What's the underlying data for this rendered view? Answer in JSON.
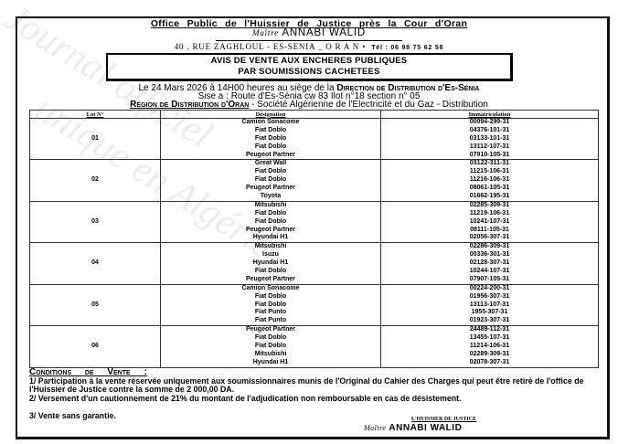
{
  "header": {
    "office": "Office Public de l'Huissier de Justice près la Cour d'Oran",
    "maitre_prefix": "Maître",
    "name": "ANNABI WALID",
    "address": "40 . RUE ZAGHLOUL - ES-SENIA _ O R A N •",
    "tel": "Tél : 06 98 75 62 58"
  },
  "title": {
    "line1": "AVIS DE VENTE AUX ENCHERES PUBLIQUES",
    "line2": "PAR SOUMISSIONS CACHETEES"
  },
  "intro": {
    "date_text": "Le 24 Mars 2026 à 14H00 heures au siège de la",
    "place": "Direction de Distribution d'Es-Sénia",
    "address": "Sise a : Route d'Es-Sénia cw 83 Ilot n°18 section n° 05",
    "region": "Région de Distribution d'Oran",
    "company": " - Société Algérienne de l'Electricité et du Gaz - Distribution"
  },
  "table": {
    "headers": [
      "Lot N°",
      "Désignation",
      "Immatriculation"
    ],
    "lots": [
      {
        "lot": "01",
        "items": [
          [
            "Camion Sonacome",
            "00094-299-31"
          ],
          [
            "Fiat Doblo",
            "04376-101-31"
          ],
          [
            "Fiat Doblo",
            "03133-101-31"
          ],
          [
            "Fiat Doblo",
            "13112-107-31"
          ],
          [
            "Peugeot Partner",
            "07910-105-31"
          ]
        ]
      },
      {
        "lot": "02",
        "items": [
          [
            "Great Wall",
            "03122-311-31"
          ],
          [
            "Fiat Doblo",
            "11215-106-31"
          ],
          [
            "Fiat Doblo",
            "11216-106-31"
          ],
          [
            "Peugeot Partner",
            "08061-105-31"
          ],
          [
            "Toyota",
            "01662-195-31"
          ]
        ]
      },
      {
        "lot": "03",
        "items": [
          [
            "Mitsubishi",
            "02285-309-31"
          ],
          [
            "Fiat Doblo",
            "11219-106-31"
          ],
          [
            "Fiat Doblo",
            "10241-107-31"
          ],
          [
            "Peugeot Partner",
            "08111-105-31"
          ],
          [
            "Hyundai H1",
            "02056-307-31"
          ]
        ]
      },
      {
        "lot": "04",
        "items": [
          [
            "Mitsubishi",
            "02286-309-31"
          ],
          [
            "Isuzu",
            "00336-301-31"
          ],
          [
            "Hyundai H1",
            "02128-307-31"
          ],
          [
            "Fiat Doblo",
            "10244-107-31"
          ],
          [
            "Peugeot Partner",
            "07907-105-31"
          ]
        ]
      },
      {
        "lot": "05",
        "items": [
          [
            "Camion Sonacome",
            "00224-200-31"
          ],
          [
            "Fiat Doblo",
            "01956-307-31"
          ],
          [
            "Fiat Doblo",
            "13113-107-31"
          ],
          [
            "Fiat Punto",
            "1955-307-31"
          ],
          [
            "Fiat Punto",
            "01923-307-31"
          ]
        ]
      },
      {
        "lot": "06",
        "items": [
          [
            "Peugeot Partner",
            "24489-112-31"
          ],
          [
            "Fiat Doblo",
            "13455-107-31"
          ],
          [
            "Fiat Doblo",
            "11214-106-31"
          ],
          [
            "Mitsubishi",
            "02289-309-31"
          ],
          [
            "Hyundai H1",
            "02078-307-31"
          ]
        ]
      }
    ]
  },
  "conditions": {
    "title": "Conditions de Vente :",
    "items": [
      "1/ Participation à la vente réservée uniquement aux soumissionnaires munis de l'Original du Cahier des Charges qui peut être retiré de l'office de l'Huissier de Justice contre la somme de 2 000,00 DA.",
      "2/ Versement d'un cautionnement de 21% du montant de l'adjudication non remboursable en cas de désistement.",
      "3/ Vente sans garantie."
    ]
  },
  "signature": {
    "role": "L'HUISSIER DE JUSTICE",
    "prefix": "Maître",
    "name": "ANNABI WALID"
  }
}
